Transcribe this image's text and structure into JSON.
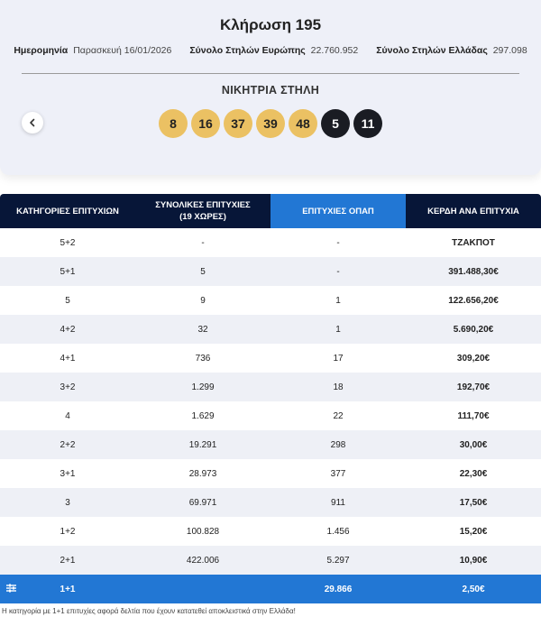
{
  "draw": {
    "title": "Κλήρωση 195",
    "date_label": "Ημερομηνία",
    "date_value": "Παρασκευή 16/01/2026",
    "europe_label": "Σύνολο Στηλών Ευρώπης",
    "europe_value": "22.760.952",
    "greece_label": "Σύνολο Στηλών Ελλάδας",
    "greece_value": "297.098",
    "winning_label": "ΝΙΚΗΤΡΙΑ ΣΤΗΛΗ",
    "numbers": [
      "8",
      "16",
      "37",
      "39",
      "48"
    ],
    "stars": [
      "5",
      "11"
    ],
    "prev_icon": "chevron-left-icon"
  },
  "table": {
    "headers": [
      [
        "ΚΑΤΗΓΟΡΙΕΣ ΕΠΙΤΥΧΙΩΝ"
      ],
      [
        "ΣΥΝΟΛΙΚΕΣ ΕΠΙΤΥΧΙΕΣ",
        "(19 ΧΩΡΕΣ)"
      ],
      [
        "ΕΠΙΤΥΧΙΕΣ ΟΠΑΠ"
      ],
      [
        "ΚΕΡΔΗ ΑΝΑ ΕΠΙΤΥΧΙΑ"
      ]
    ],
    "rows": [
      [
        "5+2",
        "-",
        "-",
        "ΤΖΑΚΠΟΤ"
      ],
      [
        "5+1",
        "5",
        "-",
        "391.488,30€"
      ],
      [
        "5",
        "9",
        "1",
        "122.656,20€"
      ],
      [
        "4+2",
        "32",
        "1",
        "5.690,20€"
      ],
      [
        "4+1",
        "736",
        "17",
        "309,20€"
      ],
      [
        "3+2",
        "1.299",
        "18",
        "192,70€"
      ],
      [
        "4",
        "1.629",
        "22",
        "111,70€"
      ],
      [
        "2+2",
        "19.291",
        "298",
        "30,00€"
      ],
      [
        "3+1",
        "28.973",
        "377",
        "22,30€"
      ],
      [
        "3",
        "69.971",
        "911",
        "17,50€"
      ],
      [
        "1+2",
        "100.828",
        "1.456",
        "15,20€"
      ],
      [
        "2+1",
        "422.006",
        "5.297",
        "10,90€"
      ],
      [
        "1+1",
        "",
        "29.866",
        "2,50€"
      ]
    ],
    "last_row_icon": "filter-icon"
  },
  "footnote": "Η κατηγορία με 1+1 επιτυχίες αφορά δελτία που έχουν κατατεθεί αποκλειστικά στην Ελλάδα!",
  "colors": {
    "header_dark": "#071638",
    "header_accent": "#2277d4",
    "ball_main": "#ebc163",
    "ball_star": "#1a1c23"
  }
}
